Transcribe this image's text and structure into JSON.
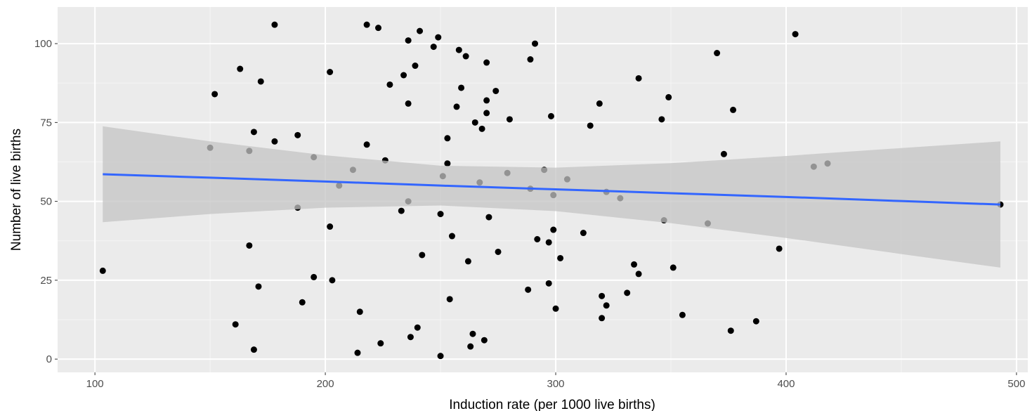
{
  "chart_data": {
    "type": "scatter",
    "x_label": "Induction rate (per 1000 live births)",
    "y_label": "Number of live births",
    "xlim": [
      83.8,
      504.9
    ],
    "ylim": [
      -4.2,
      111.6
    ],
    "xticks": [
      100,
      200,
      300,
      400,
      500
    ],
    "yticks": [
      0,
      25,
      50,
      75,
      100
    ],
    "grid": true,
    "series": [
      {
        "color": "#000000",
        "x": [
          103.4,
          150,
          152,
          163,
          161,
          167,
          167,
          169,
          169,
          172,
          171,
          178,
          178,
          188,
          188,
          190,
          195,
          195,
          202,
          202,
          203,
          206,
          212,
          218,
          218,
          215,
          214,
          223,
          224,
          226,
          228,
          234,
          233,
          236,
          236,
          236,
          237,
          239,
          241,
          240,
          242,
          247,
          249,
          250,
          250,
          251,
          253,
          253,
          255,
          254,
          257,
          258,
          259,
          261,
          262,
          263,
          264,
          265,
          267,
          268,
          269,
          270,
          270,
          270,
          271,
          274,
          275,
          279,
          280,
          288,
          289,
          289,
          291,
          292,
          295,
          297,
          297,
          298,
          299,
          299,
          300,
          302,
          305,
          312,
          315,
          319,
          320,
          320,
          322,
          322,
          328,
          331,
          334,
          336,
          336,
          346,
          347,
          349,
          351,
          355,
          366,
          370,
          373,
          376,
          377,
          387,
          397,
          404,
          412,
          418,
          493
        ],
        "values": [
          28,
          67,
          84,
          92,
          11,
          66,
          36,
          72,
          3,
          88,
          23,
          106,
          69,
          71,
          48,
          18,
          64,
          26,
          91,
          42,
          25,
          55,
          60,
          106,
          68,
          15,
          2,
          105,
          5,
          63,
          87,
          90,
          47,
          50,
          101,
          81,
          7,
          93,
          104,
          10,
          33,
          99,
          102,
          1,
          46,
          58,
          70,
          62,
          39,
          19,
          80,
          98,
          86,
          96,
          31,
          4,
          8,
          75,
          56,
          73,
          6,
          78,
          82,
          94,
          45,
          85,
          34,
          59,
          76,
          22,
          54,
          95,
          100,
          38,
          60,
          37,
          24,
          77,
          52,
          41,
          16,
          32,
          57,
          40,
          74,
          81,
          20,
          13,
          17,
          53,
          51,
          21,
          30,
          27,
          89,
          76,
          44,
          83,
          29,
          14,
          43,
          97,
          65,
          9,
          79,
          12,
          35,
          103,
          61,
          62,
          49
        ]
      }
    ],
    "smooth": {
      "color": "#3366ff",
      "band_color": "#c4c4c4",
      "x": [
        103.4,
        150,
        200,
        250,
        300,
        350,
        400,
        450,
        493
      ],
      "values": [
        58.6,
        57.5,
        56.3,
        55.0,
        53.8,
        52.6,
        51.4,
        50.1,
        49.0
      ],
      "lower": [
        43.4,
        46.0,
        48.0,
        48.7,
        46.9,
        43.1,
        38.4,
        33.3,
        29.0
      ],
      "upper": [
        73.8,
        69.0,
        64.6,
        61.3,
        60.7,
        62.1,
        64.4,
        66.9,
        69.0
      ]
    }
  }
}
